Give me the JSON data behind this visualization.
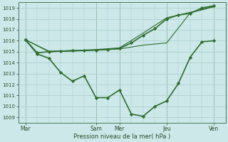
{
  "background_color": "#cce8e8",
  "grid_color": "#aacccc",
  "line_color": "#2d6e2d",
  "marker_color": "#2d6e2d",
  "xlabel": "Pression niveau de la mer( hPa )",
  "ylim": [
    1008.5,
    1019.5
  ],
  "yticks": [
    1009,
    1010,
    1011,
    1012,
    1013,
    1014,
    1015,
    1016,
    1017,
    1018,
    1019
  ],
  "xtick_labels": [
    "Mar",
    "Sam",
    "Mer",
    "Jeu",
    "Ven"
  ],
  "xtick_positions": [
    0,
    3,
    4,
    6,
    8
  ],
  "total_x": 8,
  "series": [
    {
      "x": [
        0,
        0.5,
        1.0,
        1.5,
        2.0,
        2.5,
        3.0,
        3.5,
        4.0,
        4.5,
        5.0,
        5.5,
        6.0,
        6.5,
        7.0,
        7.5,
        8.0
      ],
      "y": [
        1016.1,
        1014.8,
        1014.4,
        1013.1,
        1012.3,
        1012.8,
        1010.8,
        1010.8,
        1011.5,
        1009.3,
        1009.1,
        1010.0,
        1010.5,
        1012.1,
        1014.5,
        1015.9,
        1016.0
      ],
      "markers": true,
      "linewidth": 1.2
    },
    {
      "x": [
        0,
        0.5,
        1.0,
        1.5,
        2.0,
        2.5,
        3.0,
        3.5,
        4.0,
        4.5,
        5.0,
        5.5,
        6.0,
        6.5,
        7.0,
        7.5,
        8.0
      ],
      "y": [
        1016.1,
        1014.9,
        1015.0,
        1015.05,
        1015.1,
        1015.1,
        1015.15,
        1015.2,
        1015.3,
        1015.8,
        1016.5,
        1017.1,
        1018.0,
        1018.35,
        1018.5,
        1019.0,
        1019.2
      ],
      "markers": true,
      "linewidth": 1.2
    },
    {
      "x": [
        0,
        1.0,
        2.0,
        3.0,
        4.0,
        5.0,
        6.0,
        7.0,
        8.0
      ],
      "y": [
        1016.1,
        1015.05,
        1015.1,
        1015.2,
        1015.35,
        1016.7,
        1018.1,
        1018.6,
        1019.15
      ],
      "markers": false,
      "linewidth": 0.8
    },
    {
      "x": [
        0,
        1.0,
        2.0,
        3.0,
        4.0,
        5.0,
        6.0,
        7.0,
        8.0
      ],
      "y": [
        1016.1,
        1015.0,
        1015.05,
        1015.15,
        1015.25,
        1015.6,
        1015.8,
        1018.55,
        1019.1
      ],
      "markers": false,
      "linewidth": 0.8
    }
  ]
}
